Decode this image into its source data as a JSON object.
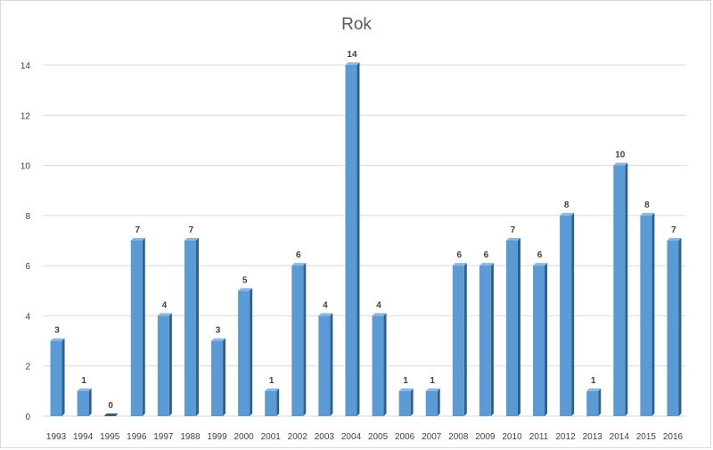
{
  "chart_data": {
    "type": "bar",
    "title": "Rok",
    "xlabel": "",
    "ylabel": "",
    "categories": [
      "1993",
      "1994",
      "1995",
      "1996",
      "1997",
      "1988",
      "1999",
      "2000",
      "2001",
      "2002",
      "2003",
      "2004",
      "2005",
      "2006",
      "2007",
      "2008",
      "2009",
      "2010",
      "2011",
      "2012",
      "2013",
      "2014",
      "2015",
      "2016"
    ],
    "values": [
      3,
      1,
      0,
      7,
      4,
      7,
      3,
      5,
      1,
      6,
      4,
      14,
      4,
      1,
      1,
      6,
      6,
      7,
      6,
      8,
      1,
      10,
      8,
      7
    ],
    "ylim": [
      0,
      14
    ],
    "yticks": [
      0,
      2,
      4,
      6,
      8,
      10,
      12,
      14
    ],
    "grid": true,
    "legend": "none",
    "colors": {
      "bar_front": "#5b9bd5",
      "bar_side": "#2e5f8f",
      "bar_top": "#8ab8e6",
      "gridline": "#d9d9d9",
      "text": "#404040"
    }
  }
}
